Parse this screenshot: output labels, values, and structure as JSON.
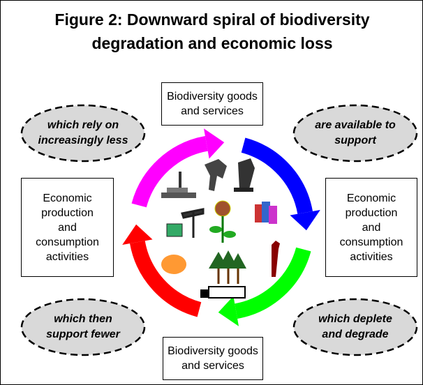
{
  "title": "Figure 2: Downward spiral of biodiversity degradation and economic loss",
  "boxes": {
    "top": "Biodiversity goods and services",
    "right": "Economic production and consumption activities",
    "bottom": "Biodiversity goods and services",
    "left": "Economic production and consumption activities"
  },
  "ovals": {
    "top_left": "which rely on increasingly less",
    "top_right": "are available to support",
    "bottom_right": "which deplete and degrade",
    "bottom_left": "which then support fewer"
  }
}
